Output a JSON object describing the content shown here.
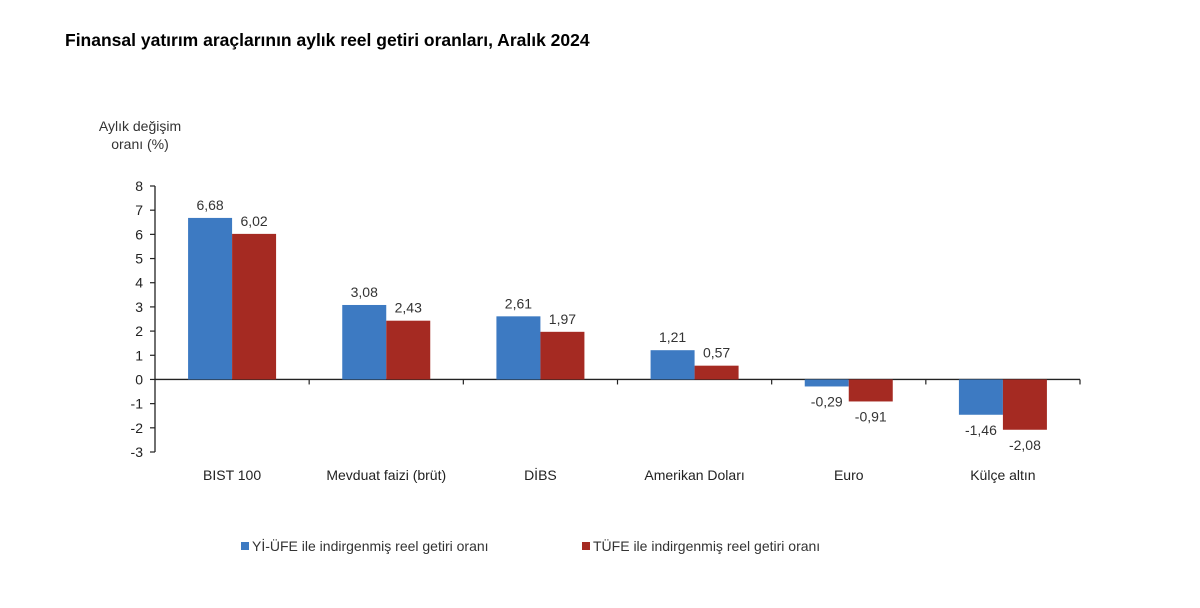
{
  "chart_data": {
    "type": "bar",
    "title": "Finansal yatırım araçlarının aylık reel getiri oranları, Aralık 2024",
    "ylabel": [
      "Aylık değişim",
      "oranı (%)"
    ],
    "xlabel": "",
    "ylim": [
      -3,
      8
    ],
    "yticks": [
      8,
      7,
      6,
      5,
      4,
      3,
      2,
      1,
      0,
      -1,
      -2,
      -3
    ],
    "grid": false,
    "legend_position": "bottom",
    "categories": [
      "BIST 100",
      "Mevduat faizi (brüt)",
      "DİBS",
      "Amerikan Doları",
      "Euro",
      "Külçe altın"
    ],
    "series": [
      {
        "name": "Yİ-ÜFE ile indirgenmiş reel getiri oranı",
        "color": "#3d7ac2",
        "values": [
          6.68,
          3.08,
          2.61,
          1.21,
          -0.29,
          -1.46
        ],
        "labels": [
          "6,68",
          "3,08",
          "2,61",
          "1,21",
          "-0,29",
          "-1,46"
        ]
      },
      {
        "name": "TÜFE ile indirgenmiş reel getiri oranı",
        "color": "#a52a22",
        "values": [
          6.02,
          2.43,
          1.97,
          0.57,
          -0.91,
          -2.08
        ],
        "labels": [
          "6,02",
          "2,43",
          "1,97",
          "0,57",
          "-0,91",
          "-2,08"
        ]
      }
    ]
  }
}
